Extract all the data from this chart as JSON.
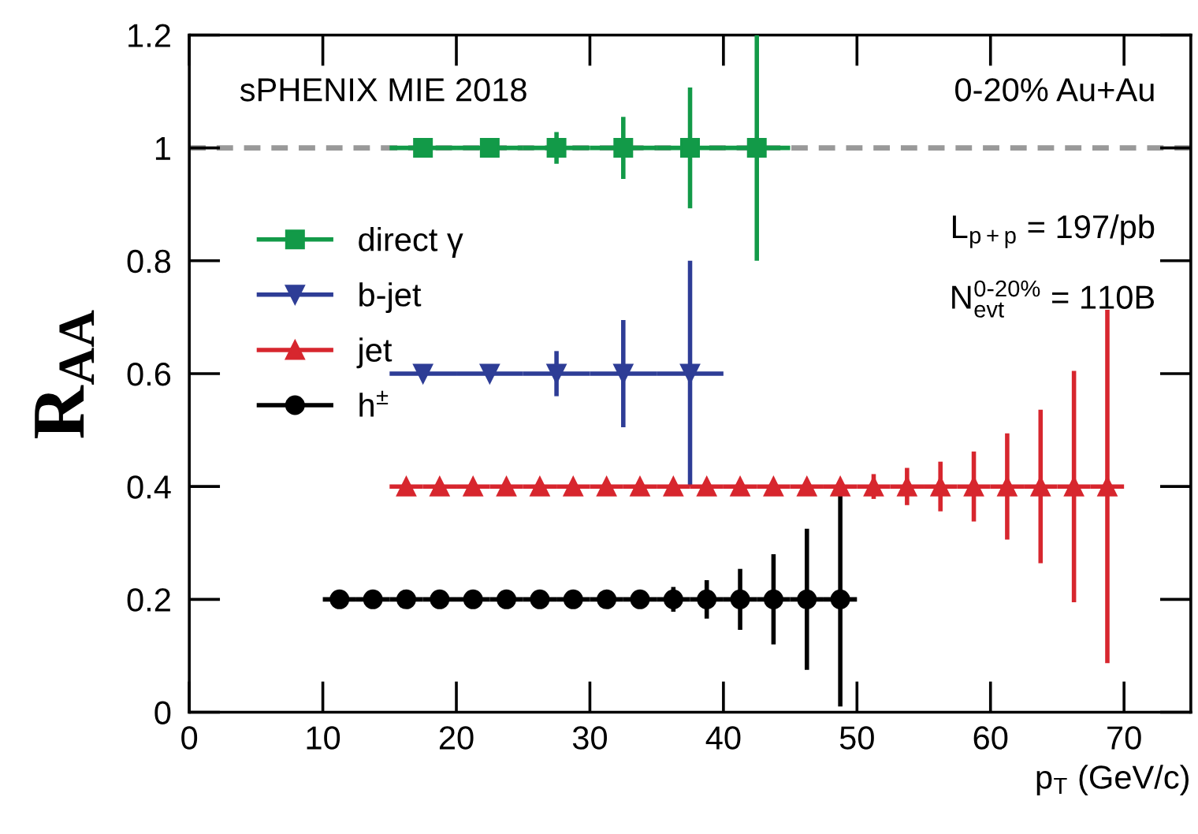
{
  "chart_data": {
    "type": "scatter",
    "xlabel": "p$_{T}$ (GeV/c)",
    "ylabel": "R$_{AA}$",
    "xlim": [
      0,
      75
    ],
    "xticks": [
      0,
      10,
      20,
      30,
      40,
      50,
      60,
      70
    ],
    "ylim": [
      0,
      1.2
    ],
    "yticks": [
      0,
      0.2,
      0.4,
      0.6,
      0.8,
      1,
      1.2
    ],
    "grid": false,
    "legend": "top left",
    "ref_lines": [
      {
        "axis": "y",
        "value": 1,
        "color": "#999999",
        "line_style": "dashed"
      }
    ],
    "annotations": [
      "sPHENIX MIE 2018",
      "0-20% Au+Au",
      "L$_{p+p}$ = 197/pb",
      "N$^{0-20%}$$_{evt}$ = 110B"
    ],
    "series": [
      {
        "name": "direct γ",
        "color": "#129a48",
        "marker": "square",
        "x": [
          17.5,
          22.5,
          27.5,
          32.5,
          37.5,
          42.5
        ],
        "values": [
          1,
          1,
          1,
          1,
          1,
          1
        ],
        "errors": [
          null,
          null,
          0.028,
          0.055,
          0.107,
          0.2
        ],
        "xerrors": [
          2.5,
          2.5,
          2.5,
          2.5,
          2.5,
          2.5
        ]
      },
      {
        "name": "b-jet",
        "color": "#2e3d96",
        "marker": "triangle_down",
        "x": [
          17.5,
          22.5,
          27.5,
          32.5,
          37.5
        ],
        "values": [
          0.6,
          0.6,
          0.6,
          0.6,
          0.6
        ],
        "errors": [
          null,
          null,
          0.04,
          0.095,
          0.2
        ],
        "xerrors": [
          2.5,
          2.5,
          2.5,
          2.5,
          2.5
        ]
      },
      {
        "name": "jet",
        "color": "#d7262e",
        "marker": "triangle",
        "x": [
          16.25,
          18.75,
          21.25,
          23.75,
          26.25,
          28.75,
          31.25,
          33.75,
          36.25,
          38.75,
          41.25,
          43.75,
          46.25,
          48.75,
          51.25,
          53.75,
          56.25,
          58.75,
          61.25,
          63.75,
          66.25,
          68.75
        ],
        "values": [
          0.4,
          0.4,
          0.4,
          0.4,
          0.4,
          0.4,
          0.4,
          0.4,
          0.4,
          0.4,
          0.4,
          0.4,
          0.4,
          0.4,
          0.4,
          0.4,
          0.4,
          0.4,
          0.4,
          0.4,
          0.4,
          0.4
        ],
        "errors": [
          null,
          null,
          null,
          null,
          null,
          null,
          null,
          null,
          null,
          null,
          null,
          null,
          null,
          null,
          0.022,
          0.033,
          0.044,
          0.062,
          0.094,
          0.136,
          0.205,
          0.313
        ],
        "xerrors": [
          1.25,
          1.25,
          1.25,
          1.25,
          1.25,
          1.25,
          1.25,
          1.25,
          1.25,
          1.25,
          1.25,
          1.25,
          1.25,
          1.25,
          1.25,
          1.25,
          1.25,
          1.25,
          1.25,
          1.25,
          1.25,
          1.25
        ]
      },
      {
        "name": "h$^{±}$",
        "color": "#000000",
        "marker": "circle",
        "x": [
          11.25,
          13.75,
          16.25,
          18.75,
          21.25,
          23.75,
          26.25,
          28.75,
          31.25,
          33.75,
          36.25,
          38.75,
          41.25,
          43.75,
          46.25,
          48.75
        ],
        "values": [
          0.2,
          0.2,
          0.2,
          0.2,
          0.2,
          0.2,
          0.2,
          0.2,
          0.2,
          0.2,
          0.2,
          0.2,
          0.2,
          0.2,
          0.2,
          0.2
        ],
        "errors": [
          null,
          null,
          null,
          null,
          null,
          null,
          null,
          null,
          null,
          null,
          0.022,
          0.034,
          0.054,
          0.08,
          0.125,
          0.19
        ],
        "xerrors": [
          1.25,
          1.25,
          1.25,
          1.25,
          1.25,
          1.25,
          1.25,
          1.25,
          1.25,
          1.25,
          1.25,
          1.25,
          1.25,
          1.25,
          1.25,
          1.25
        ]
      }
    ]
  }
}
